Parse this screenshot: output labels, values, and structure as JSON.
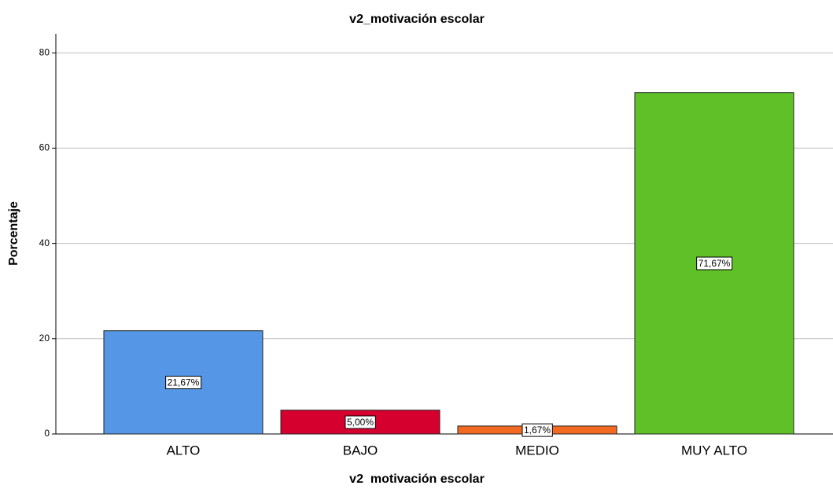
{
  "chart_data": {
    "type": "bar",
    "title": "v2_motivación escolar",
    "x_label": "v2  motivación escolar",
    "y_label": "Porcentaje",
    "categories": [
      "ALTO",
      "BAJO",
      "MEDIO",
      "MUY ALTO"
    ],
    "values": [
      21.67,
      5.0,
      1.67,
      71.67
    ],
    "value_labels": [
      "21,67%",
      "5,00%",
      "1,67%",
      "71,67%"
    ],
    "colors": [
      "#5596e6",
      "#d6002f",
      "#f26a21",
      "#5fc127"
    ],
    "ylim": [
      0,
      84
    ],
    "yticks": [
      0,
      20,
      40,
      60,
      80
    ],
    "grid": true
  }
}
